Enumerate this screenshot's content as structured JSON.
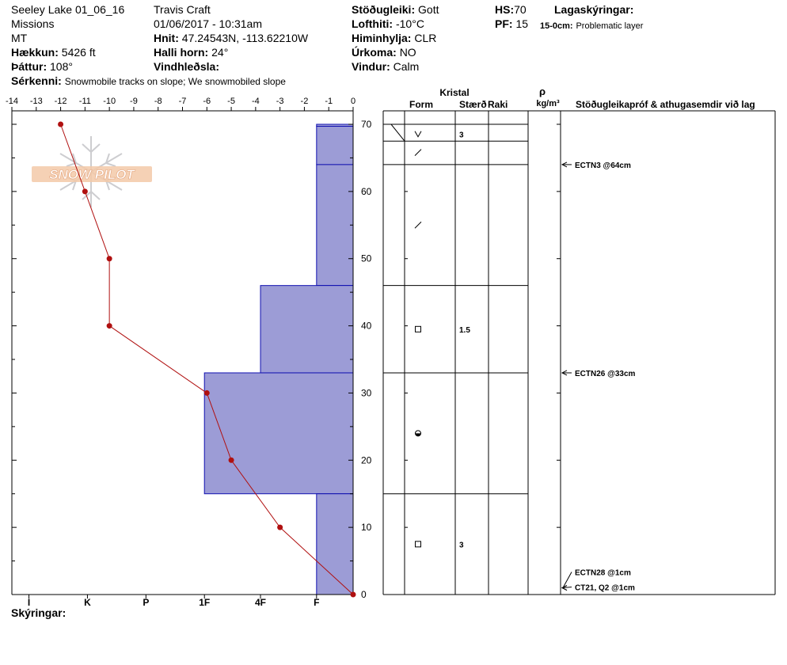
{
  "header": {
    "title": "Seeley Lake 01_06_16",
    "range": "Missions",
    "state": "MT",
    "elevation_label": "Hækkun:",
    "elevation": "5426 ft",
    "aspect_label": "Þáttur:",
    "aspect": "108°",
    "features_label": "Sérkenni:",
    "features": "Snowmobile tracks on slope; We snowmobiled slope",
    "observer": "Travis  Craft",
    "datetime": "01/06/2017 - 10:31am",
    "coords_label": "Hnit:",
    "coords": "47.24543N, -113.62210W",
    "slope_label": "Halli horn:",
    "slope": "24°",
    "wind_loading_label": "Vindhleðsla:",
    "stability_label": "Stöðugleiki:",
    "stability": "Gott",
    "air_temp_label": "Lofthiti:",
    "air_temp": "-10°C",
    "sky_label": "Himinhylja:",
    "sky": "CLR",
    "precip_label": "Úrkoma:",
    "precip": "NO",
    "wind_label": "Vindur:",
    "wind": "Calm",
    "hs_label": "HS:",
    "hs": "70",
    "pf_label": "PF:",
    "pf": "15",
    "layer_notes_label": "Lagaskýringar:",
    "layer_note_depth": "15-0cm:",
    "layer_note_text": "Problematic layer"
  },
  "legend_label": "Skýringar:",
  "logo_text": "SNOW PILOT",
  "table_headers": {
    "crystal": "Kristal",
    "form": "Form",
    "size": "Stærð",
    "moisture": "Raki",
    "rho": "ρ",
    "density_unit": "kg/m³",
    "tests": "Stöðugleikapróf & athugasemdir við lag"
  },
  "colors": {
    "hardness_fill": "#9c9cd6",
    "hardness_stroke": "#1010b0",
    "temp_line": "#b01010"
  },
  "chart_data": {
    "type": "snow_profile",
    "temperature_axis": {
      "ticks": [
        -14,
        -13,
        -12,
        -11,
        -10,
        -9,
        -8,
        -7,
        -6,
        -5,
        -4,
        -3,
        -2,
        -1,
        0
      ],
      "range": [
        -14,
        0
      ]
    },
    "depth_axis": {
      "ticks": [
        0,
        10,
        20,
        30,
        40,
        50,
        60,
        70
      ],
      "range": [
        0,
        70
      ]
    },
    "hardness_axis": {
      "ticks": [
        "I",
        "K",
        "P",
        "1F",
        "4F",
        "F"
      ],
      "tick_temps": [
        -13.3,
        -10.9,
        -8.5,
        -6.1,
        -3.8,
        -1.5
      ]
    },
    "temperature_profile": [
      {
        "depth": 70,
        "temp": -12
      },
      {
        "depth": 60,
        "temp": -11
      },
      {
        "depth": 50,
        "temp": -10
      },
      {
        "depth": 40,
        "temp": -10
      },
      {
        "depth": 30,
        "temp": -6
      },
      {
        "depth": 20,
        "temp": -5
      },
      {
        "depth": 10,
        "temp": -3
      },
      {
        "depth": 0,
        "temp": 0
      }
    ],
    "hardness_layers": [
      {
        "top": 70,
        "bottom": 69.7,
        "hardness": "F",
        "temp_edge": -1.5
      },
      {
        "top": 69.7,
        "bottom": 64,
        "hardness": "F",
        "temp_edge": -1.5
      },
      {
        "top": 64,
        "bottom": 46,
        "hardness": "F",
        "temp_edge": -1.5
      },
      {
        "top": 46,
        "bottom": 33,
        "hardness": "4F",
        "temp_edge": -3.8
      },
      {
        "top": 33,
        "bottom": 15,
        "hardness": "1F",
        "temp_edge": -6.1
      },
      {
        "top": 15,
        "bottom": 0,
        "hardness": "F",
        "temp_edge": -1.5
      }
    ],
    "layers": [
      {
        "top": 70,
        "bottom": 67.5,
        "form": "v",
        "size": "3",
        "mark_depth": 68.5
      },
      {
        "top": 67.5,
        "bottom": 64,
        "form": "slash",
        "size": "",
        "mark_depth": 65.8
      },
      {
        "top": 64,
        "bottom": 46,
        "form": "slash",
        "size": "",
        "mark_depth": 55
      },
      {
        "top": 46,
        "bottom": 33,
        "form": "square",
        "size": "1.5",
        "mark_depth": 39.5
      },
      {
        "top": 33,
        "bottom": 15,
        "form": "half-disc",
        "size": "",
        "mark_depth": 24
      },
      {
        "top": 15,
        "bottom": 0,
        "form": "square",
        "size": "3",
        "mark_depth": 7.5
      }
    ],
    "tests": [
      {
        "label": "ECTN3 @64cm",
        "depth": 64
      },
      {
        "label": "ECTN26 @33cm",
        "depth": 33
      },
      {
        "label": "ECTN28 @1cm",
        "depth": 1
      },
      {
        "label": "CT21, Q2 @1cm",
        "depth": 1
      }
    ]
  }
}
